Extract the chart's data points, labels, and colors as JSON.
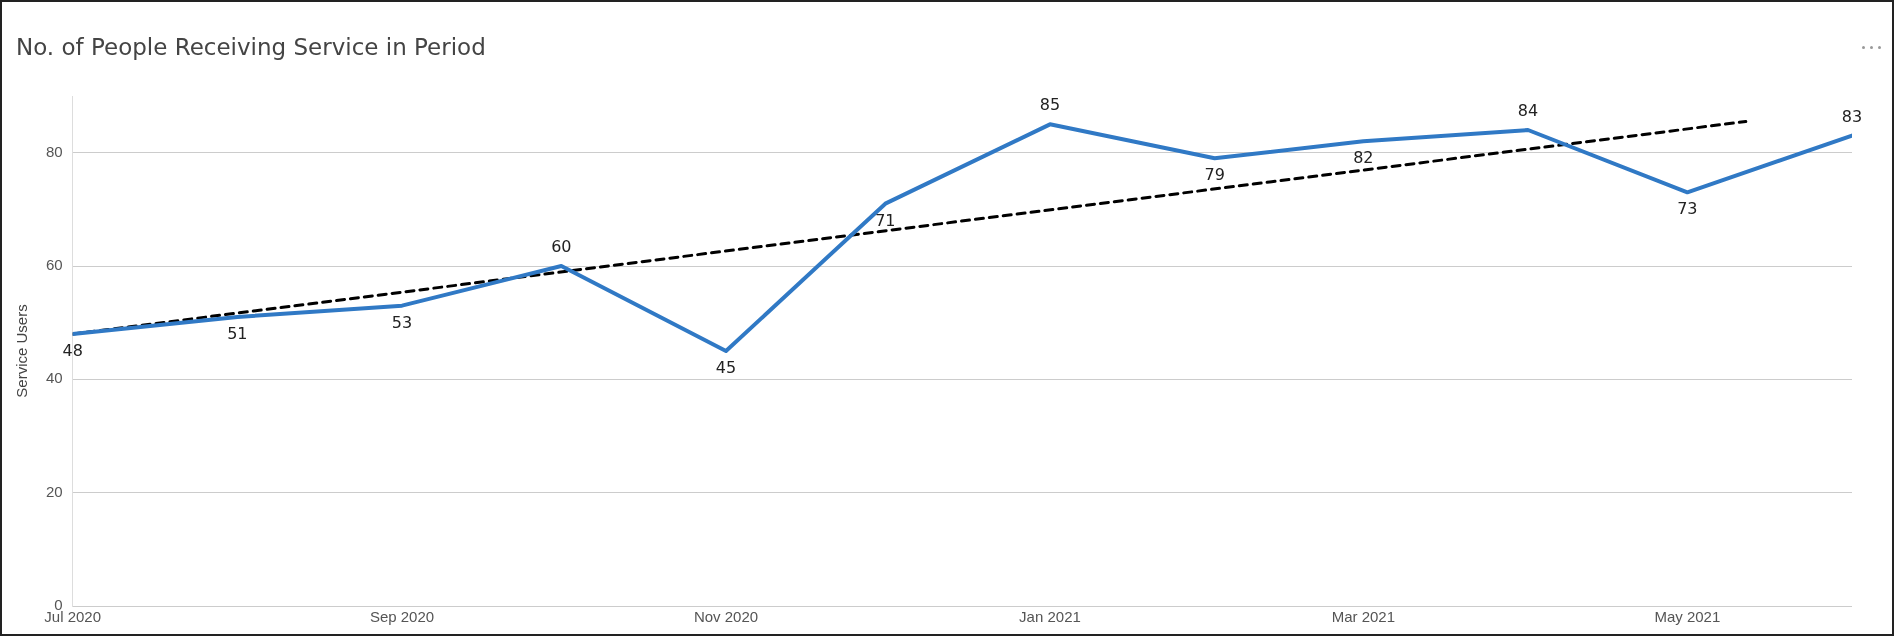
{
  "chart_data": {
    "type": "line",
    "title": "No. of People Receiving Service in Period",
    "ylabel": "Service Users",
    "x": [
      "2020-07",
      "2020-08",
      "2020-09",
      "2020-10",
      "2020-11",
      "2020-12",
      "2021-01",
      "2021-02",
      "2021-03",
      "2021-04",
      "2021-05",
      "2021-06"
    ],
    "series": [
      {
        "color": "#3079c5",
        "values": [
          48,
          51,
          53,
          60,
          45,
          71,
          85,
          79,
          82,
          84,
          73,
          83
        ],
        "value_labels": [
          "48",
          "51",
          "53",
          "60",
          "45",
          "71",
          "85",
          "79",
          "82",
          "84",
          "73",
          "83"
        ]
      },
      {
        "type": "line",
        "color": "#000000",
        "line_style": "dashed",
        "x": [
          "2020-07-01",
          "2021-05-12"
        ],
        "values": [
          48,
          85.5
        ]
      }
    ],
    "xlim": [
      "2020-07",
      "2021-06"
    ],
    "xticks": [
      {
        "value": "2020-07",
        "label": "Jul 2020"
      },
      {
        "value": "2020-09",
        "label": "Sep 2020"
      },
      {
        "value": "2020-11",
        "label": "Nov 2020"
      },
      {
        "value": "2021-01",
        "label": "Jan 2021"
      },
      {
        "value": "2021-03",
        "label": "Mar 2021"
      },
      {
        "value": "2021-05",
        "label": "May 2021"
      }
    ],
    "ylim": [
      0,
      90
    ],
    "yticks": [
      0,
      20,
      40,
      60,
      80
    ],
    "grid": "y",
    "legend": false,
    "marker": "none",
    "line_style": "solid"
  }
}
